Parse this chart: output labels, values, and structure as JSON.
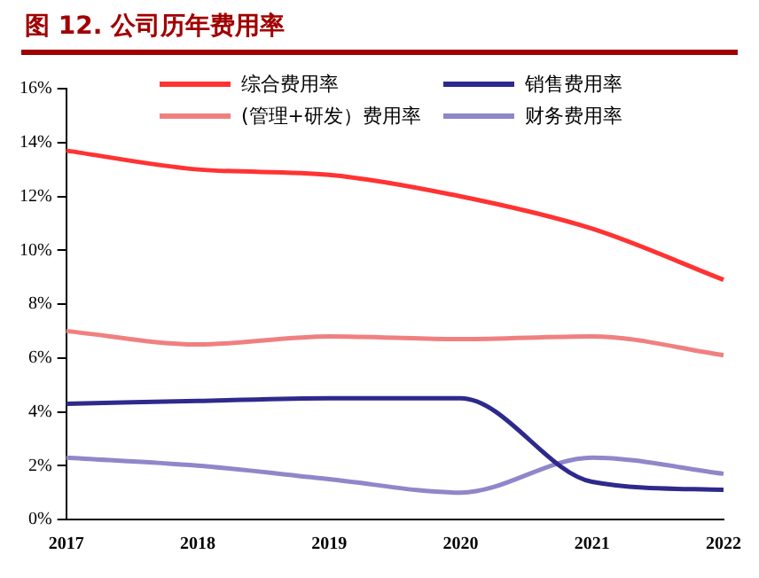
{
  "chart_data": {
    "type": "line",
    "title": "图 12. 公司历年费用率",
    "categories": [
      "2017",
      "2018",
      "2019",
      "2020",
      "2021",
      "2022"
    ],
    "series": [
      {
        "name": "综合费用率",
        "color": "#ff3333",
        "values": [
          13.7,
          13.0,
          12.8,
          12.0,
          10.8,
          8.9
        ]
      },
      {
        "name": "销售费用率",
        "color": "#2e2a8c",
        "values": [
          4.3,
          4.4,
          4.5,
          4.5,
          1.4,
          1.1
        ]
      },
      {
        "name": "(管理+研发）费用率",
        "color": "#f08080",
        "values": [
          7.0,
          6.5,
          6.8,
          6.7,
          6.8,
          6.1
        ]
      },
      {
        "name": "财务费用率",
        "color": "#8f87c9",
        "values": [
          2.3,
          2.0,
          1.5,
          1.0,
          2.3,
          1.7
        ]
      }
    ],
    "ylim": [
      0,
      16
    ],
    "yticks": [
      {
        "value": 0,
        "label": "0%"
      },
      {
        "value": 2,
        "label": "2%"
      },
      {
        "value": 4,
        "label": "4%"
      },
      {
        "value": 6,
        "label": "6%"
      },
      {
        "value": 8,
        "label": "8%"
      },
      {
        "value": 10,
        "label": "10%"
      },
      {
        "value": 12,
        "label": "12%"
      },
      {
        "value": 14,
        "label": "14%"
      },
      {
        "value": 16,
        "label": "16%"
      }
    ],
    "grid": false,
    "legend": "top",
    "marker": "none",
    "line_style": "solid"
  }
}
